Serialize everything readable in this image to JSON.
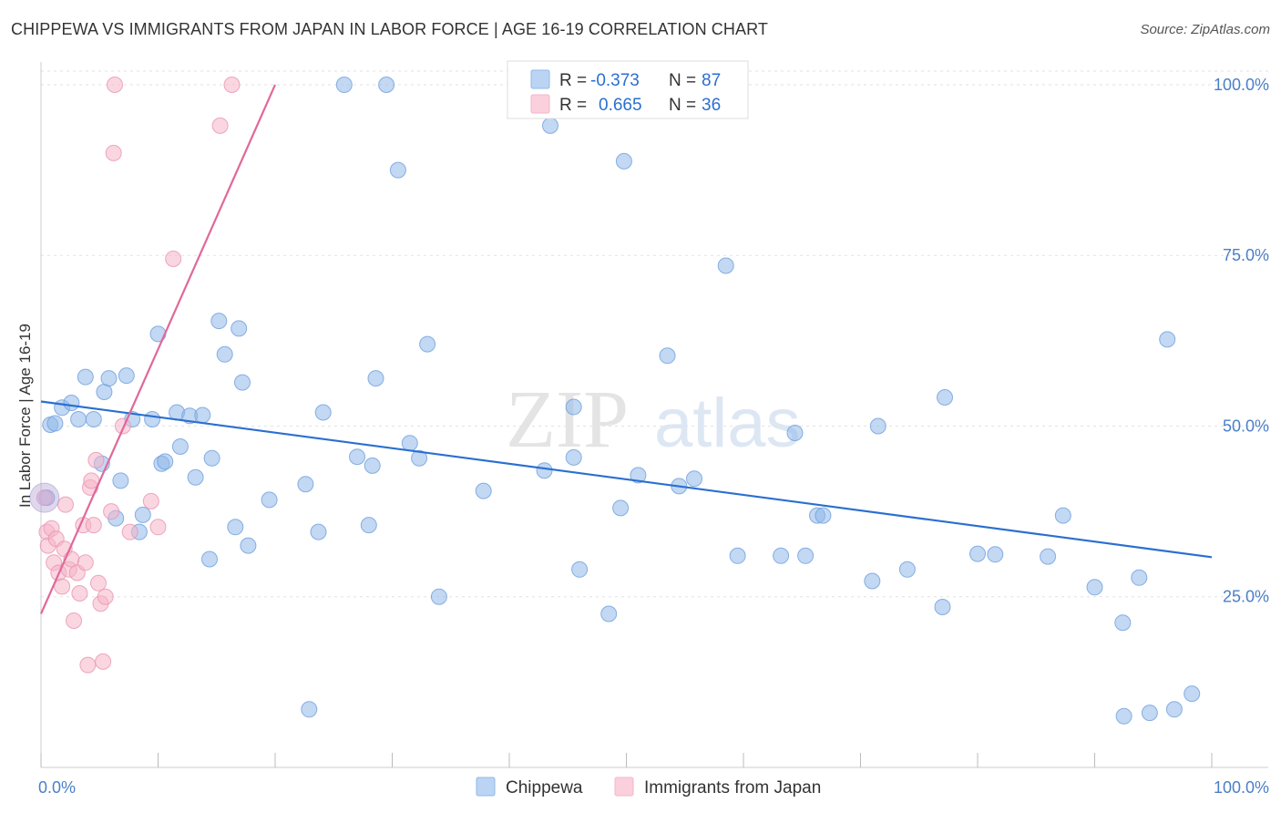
{
  "title": "CHIPPEWA VS IMMIGRANTS FROM JAPAN IN LABOR FORCE | AGE 16-19 CORRELATION CHART",
  "source": "Source: ZipAtlas.com",
  "watermark": {
    "zip": "ZIP",
    "atlas": "atlas"
  },
  "chart_data": {
    "type": "scatter",
    "title": "CHIPPEWA VS IMMIGRANTS FROM JAPAN IN LABOR FORCE | AGE 16-19 CORRELATION CHART",
    "xlabel": "",
    "ylabel": "In Labor Force | Age 16-19",
    "xlim": [
      0,
      100
    ],
    "ylim": [
      0,
      102
    ],
    "x_tick_labels": [
      "0.0%",
      "100.0%"
    ],
    "y_ticks": [
      25,
      50,
      75,
      100
    ],
    "y_tick_labels": [
      "25.0%",
      "50.0%",
      "75.0%",
      "100.0%"
    ],
    "legend_stats": [
      {
        "r_label": "R =",
        "r_value": "-0.373",
        "n_label": "N =",
        "n_value": "87"
      },
      {
        "r_label": "R =",
        "r_value": "0.665",
        "n_label": "N =",
        "n_value": "36"
      }
    ],
    "series": [
      {
        "name": "Chippewa",
        "color": "#8fb8ea",
        "edge": "#6f9fdc",
        "trend_color": "#2a6fd0",
        "trend": {
          "x": [
            0,
            100
          ],
          "y": [
            53.6,
            30.8
          ]
        },
        "points": [
          [
            0.5,
            39.5
          ],
          [
            0.8,
            50.2
          ],
          [
            1.2,
            50.4
          ],
          [
            1.8,
            52.7
          ],
          [
            2.6,
            53.4
          ],
          [
            3.2,
            51.0
          ],
          [
            3.8,
            57.2
          ],
          [
            4.5,
            51.0
          ],
          [
            5.2,
            44.5
          ],
          [
            5.4,
            55.0
          ],
          [
            5.8,
            57.0
          ],
          [
            6.4,
            36.5
          ],
          [
            6.8,
            42.0
          ],
          [
            7.3,
            57.4
          ],
          [
            7.8,
            51.0
          ],
          [
            8.4,
            34.5
          ],
          [
            8.7,
            37.0
          ],
          [
            9.5,
            51.0
          ],
          [
            10.0,
            63.5
          ],
          [
            10.3,
            44.5
          ],
          [
            10.6,
            44.8
          ],
          [
            11.6,
            52.0
          ],
          [
            11.9,
            47.0
          ],
          [
            12.7,
            51.5
          ],
          [
            13.2,
            42.5
          ],
          [
            13.8,
            51.6
          ],
          [
            14.4,
            30.5
          ],
          [
            14.6,
            45.3
          ],
          [
            15.2,
            65.4
          ],
          [
            15.7,
            60.5
          ],
          [
            16.6,
            35.2
          ],
          [
            16.9,
            64.3
          ],
          [
            17.2,
            56.4
          ],
          [
            17.7,
            32.5
          ],
          [
            19.5,
            39.2
          ],
          [
            22.6,
            41.5
          ],
          [
            22.9,
            8.5
          ],
          [
            23.7,
            34.5
          ],
          [
            24.1,
            52.0
          ],
          [
            25.9,
            100.0
          ],
          [
            27.0,
            45.5
          ],
          [
            28.0,
            35.5
          ],
          [
            28.3,
            44.2
          ],
          [
            28.6,
            57.0
          ],
          [
            29.5,
            100.0
          ],
          [
            30.5,
            87.5
          ],
          [
            31.5,
            47.5
          ],
          [
            32.3,
            45.3
          ],
          [
            33.0,
            62.0
          ],
          [
            34.0,
            25.0
          ],
          [
            37.8,
            40.5
          ],
          [
            43.0,
            43.5
          ],
          [
            43.5,
            94.0
          ],
          [
            45.5,
            52.8
          ],
          [
            45.5,
            45.4
          ],
          [
            46.0,
            29.0
          ],
          [
            48.5,
            22.5
          ],
          [
            49.5,
            38.0
          ],
          [
            49.8,
            88.8
          ],
          [
            51.0,
            42.8
          ],
          [
            53.5,
            60.3
          ],
          [
            54.5,
            41.2
          ],
          [
            55.8,
            42.3
          ],
          [
            58.5,
            73.5
          ],
          [
            59.5,
            31.0
          ],
          [
            63.2,
            31.0
          ],
          [
            64.4,
            49.0
          ],
          [
            65.3,
            31.0
          ],
          [
            66.3,
            36.9
          ],
          [
            66.8,
            36.9
          ],
          [
            71.0,
            27.3
          ],
          [
            71.5,
            50.0
          ],
          [
            74.0,
            29.0
          ],
          [
            77.0,
            23.5
          ],
          [
            77.2,
            54.2
          ],
          [
            80.0,
            31.3
          ],
          [
            81.5,
            31.2
          ],
          [
            86.0,
            30.9
          ],
          [
            87.3,
            36.9
          ],
          [
            90.0,
            26.4
          ],
          [
            92.4,
            21.2
          ],
          [
            92.5,
            7.5
          ],
          [
            93.8,
            27.8
          ],
          [
            94.7,
            8.0
          ],
          [
            96.2,
            62.7
          ],
          [
            96.8,
            8.5
          ],
          [
            98.3,
            10.8
          ]
        ]
      },
      {
        "name": "Immigrants from Japan",
        "color": "#f5b5c8",
        "edge": "#e993b0",
        "trend_color": "#e0689a",
        "trend": {
          "x": [
            0,
            20
          ],
          "y": [
            22.5,
            100.0
          ]
        },
        "points": [
          [
            0.3,
            39.5
          ],
          [
            0.5,
            34.5
          ],
          [
            0.6,
            32.5
          ],
          [
            0.9,
            35.0
          ],
          [
            1.1,
            30.0
          ],
          [
            1.3,
            33.5
          ],
          [
            1.5,
            28.5
          ],
          [
            1.8,
            26.5
          ],
          [
            2.0,
            32.0
          ],
          [
            2.1,
            38.5
          ],
          [
            2.4,
            29.0
          ],
          [
            2.6,
            30.5
          ],
          [
            2.8,
            21.5
          ],
          [
            3.1,
            28.5
          ],
          [
            3.3,
            25.5
          ],
          [
            3.6,
            35.5
          ],
          [
            3.8,
            30.0
          ],
          [
            4.0,
            15.0
          ],
          [
            4.2,
            41.0
          ],
          [
            4.3,
            42.0
          ],
          [
            4.5,
            35.5
          ],
          [
            4.7,
            45.0
          ],
          [
            4.9,
            27.0
          ],
          [
            5.1,
            24.0
          ],
          [
            5.3,
            15.5
          ],
          [
            5.5,
            25.0
          ],
          [
            6.0,
            37.5
          ],
          [
            6.2,
            90.0
          ],
          [
            6.3,
            100.0
          ],
          [
            7.0,
            50.0
          ],
          [
            7.6,
            34.5
          ],
          [
            9.4,
            39.0
          ],
          [
            10.0,
            35.2
          ],
          [
            11.3,
            74.5
          ],
          [
            15.3,
            94.0
          ],
          [
            16.3,
            100.0
          ]
        ]
      }
    ]
  }
}
